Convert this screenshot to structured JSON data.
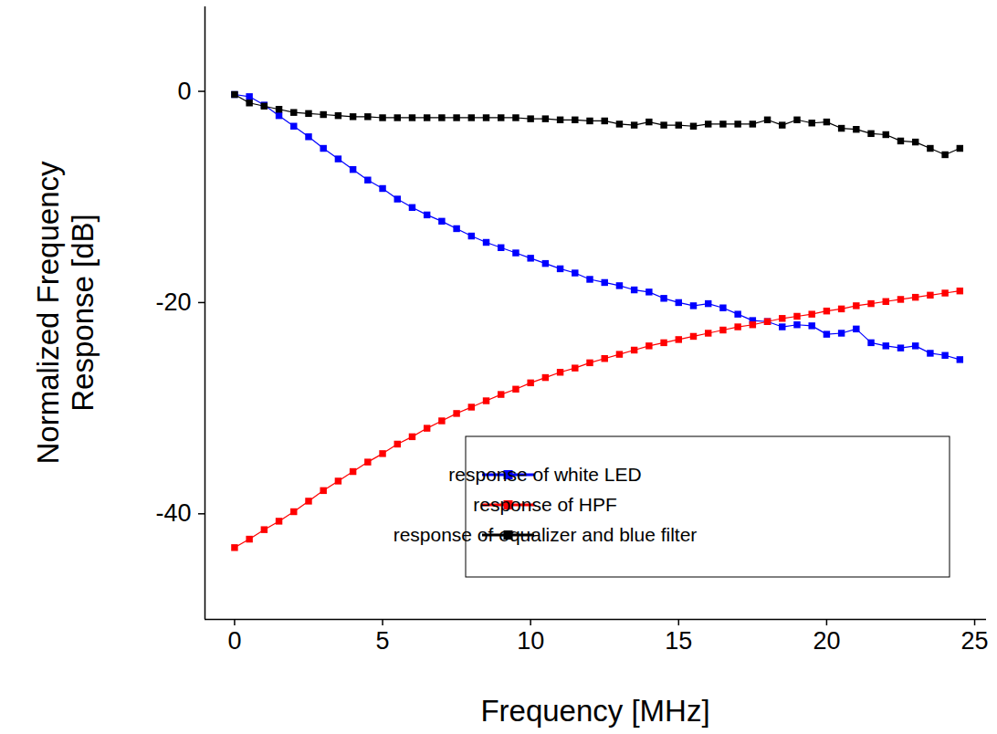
{
  "chart_data": {
    "type": "line",
    "x_label": "Frequency [MHz]",
    "y_label": "Normalized Frequency\nResponse [dB]",
    "x": [
      0,
      0.5,
      1,
      1.5,
      2,
      2.5,
      3,
      3.5,
      4,
      4.5,
      5,
      5.5,
      6,
      6.5,
      7,
      7.5,
      8,
      8.5,
      9,
      9.5,
      10,
      10.5,
      11,
      11.5,
      12,
      12.5,
      13,
      13.5,
      14,
      14.5,
      15,
      15.5,
      16,
      16.5,
      17,
      17.5,
      18,
      18.5,
      19,
      19.5,
      20,
      20.5,
      21,
      21.5,
      22,
      22.5,
      23,
      23.5,
      24,
      24.5
    ],
    "series": [
      {
        "name": "response of white LED",
        "color": "#0000ff",
        "marker": "square",
        "values": [
          -0.3,
          -0.5,
          -1.3,
          -2.3,
          -3.3,
          -4.3,
          -5.4,
          -6.4,
          -7.4,
          -8.4,
          -9.2,
          -10.2,
          -11.0,
          -11.7,
          -12.3,
          -13.0,
          -13.7,
          -14.3,
          -14.8,
          -15.3,
          -15.8,
          -16.3,
          -16.8,
          -17.2,
          -17.8,
          -18.1,
          -18.4,
          -18.8,
          -19.0,
          -19.6,
          -20.0,
          -20.3,
          -20.1,
          -20.5,
          -21.1,
          -21.7,
          -21.8,
          -22.3,
          -22.1,
          -22.2,
          -23.0,
          -22.9,
          -22.5,
          -23.8,
          -24.1,
          -24.3,
          -24.1,
          -24.8,
          -25.0,
          -25.4
        ]
      },
      {
        "name": "response of HPF",
        "color": "#ff0000",
        "marker": "square",
        "values": [
          -43.2,
          -42.4,
          -41.5,
          -40.7,
          -39.8,
          -38.8,
          -37.8,
          -36.9,
          -36.0,
          -35.1,
          -34.3,
          -33.4,
          -32.7,
          -31.9,
          -31.2,
          -30.5,
          -29.9,
          -29.3,
          -28.7,
          -28.2,
          -27.6,
          -27.1,
          -26.6,
          -26.2,
          -25.7,
          -25.3,
          -24.9,
          -24.5,
          -24.1,
          -23.8,
          -23.5,
          -23.2,
          -22.9,
          -22.6,
          -22.3,
          -22.1,
          -21.8,
          -21.5,
          -21.3,
          -21.1,
          -20.8,
          -20.6,
          -20.3,
          -20.1,
          -19.9,
          -19.7,
          -19.5,
          -19.3,
          -19.1,
          -18.9
        ]
      },
      {
        "name": "response of equalizer and blue filter",
        "color": "#000000",
        "marker": "square",
        "values": [
          -0.3,
          -1.1,
          -1.4,
          -1.7,
          -2.0,
          -2.1,
          -2.2,
          -2.3,
          -2.4,
          -2.4,
          -2.5,
          -2.5,
          -2.5,
          -2.5,
          -2.5,
          -2.5,
          -2.5,
          -2.5,
          -2.5,
          -2.5,
          -2.6,
          -2.6,
          -2.7,
          -2.7,
          -2.8,
          -2.8,
          -3.1,
          -3.2,
          -2.9,
          -3.2,
          -3.2,
          -3.3,
          -3.1,
          -3.1,
          -3.1,
          -3.1,
          -2.7,
          -3.2,
          -2.7,
          -3.0,
          -2.9,
          -3.5,
          -3.6,
          -4.0,
          -4.1,
          -4.7,
          -4.8,
          -5.4,
          -6.0,
          -5.4
        ]
      }
    ],
    "xlim": [
      -1,
      25.4
    ],
    "ylim": [
      -50,
      8
    ],
    "xticks": [
      0,
      5,
      10,
      15,
      20,
      25
    ],
    "yticks": [
      -40,
      -20,
      0
    ],
    "grid": false,
    "legend": "lower right"
  }
}
